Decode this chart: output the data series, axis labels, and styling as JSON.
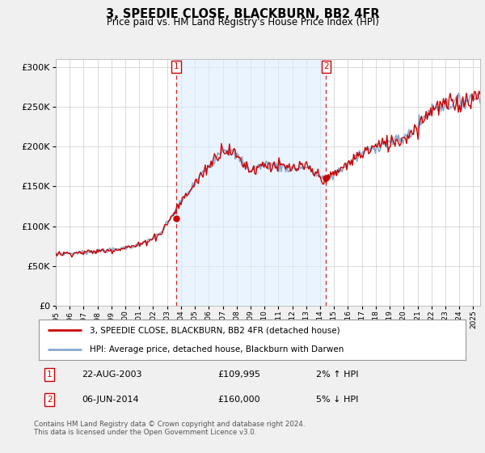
{
  "title": "3, SPEEDIE CLOSE, BLACKBURN, BB2 4FR",
  "subtitle": "Price paid vs. HM Land Registry's House Price Index (HPI)",
  "legend_line1": "3, SPEEDIE CLOSE, BLACKBURN, BB2 4FR (detached house)",
  "legend_line2": "HPI: Average price, detached house, Blackburn with Darwen",
  "annotation1_date": "22-AUG-2003",
  "annotation1_price": "£109,995",
  "annotation1_hpi": "2% ↑ HPI",
  "annotation2_date": "06-JUN-2014",
  "annotation2_price": "£160,000",
  "annotation2_hpi": "5% ↓ HPI",
  "footnote": "Contains HM Land Registry data © Crown copyright and database right 2024.\nThis data is licensed under the Open Government Licence v3.0.",
  "sale1_x": 2003.65,
  "sale1_y": 109995,
  "sale2_x": 2014.43,
  "sale2_y": 160000,
  "red_color": "#cc0000",
  "blue_color": "#88aacc",
  "shade_color": "#ddeeff",
  "bg_color": "#f0f0f0",
  "plot_bg_color": "#ffffff",
  "ylim": [
    0,
    310000
  ],
  "xlim_start": 1995,
  "xlim_end": 2025.5
}
